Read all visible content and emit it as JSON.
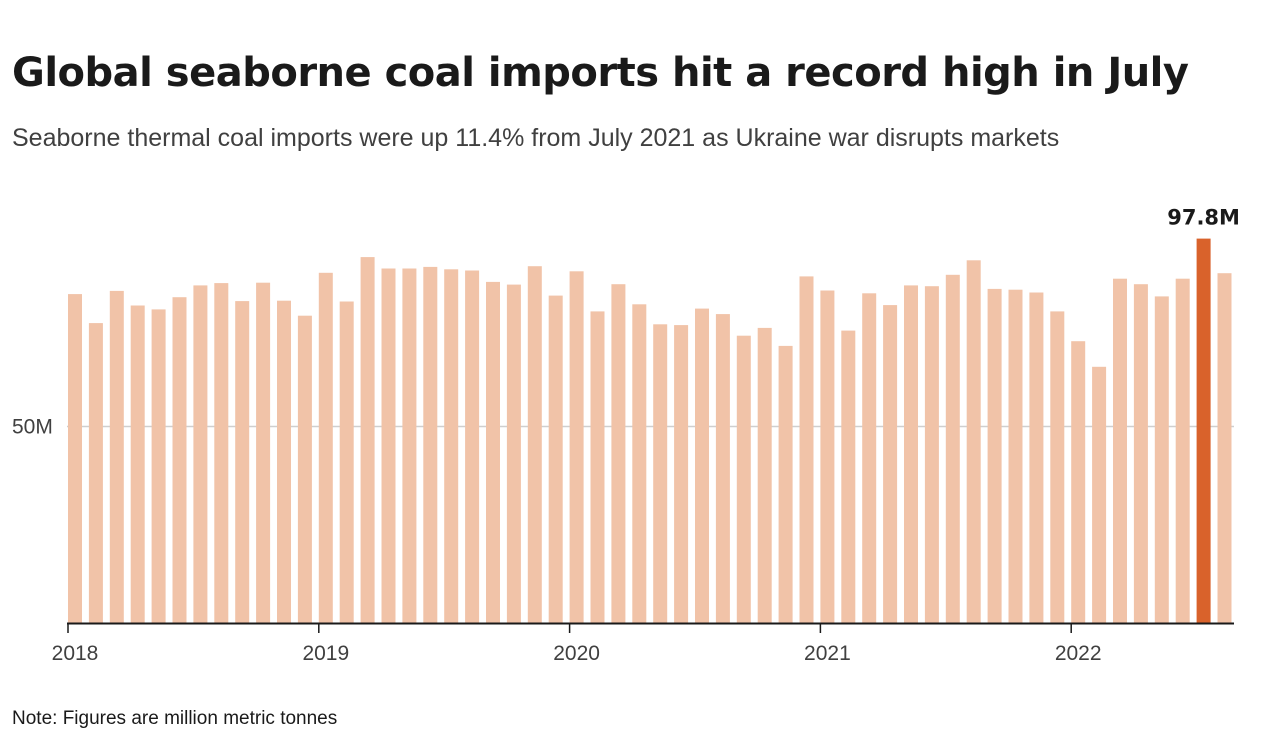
{
  "chart_data": {
    "type": "bar",
    "title": "Global seaborne coal imports hit a record high in July",
    "subtitle": "Seaborne thermal coal imports were up 11.4% from July 2021 as Ukraine war disrupts markets",
    "note": "Note: Figures are million metric tonnes",
    "xlabel": "",
    "ylabel": "",
    "ylim": [
      0,
      100
    ],
    "y_ticks": [
      {
        "value": 50,
        "label": "50M"
      }
    ],
    "x_ticks": [
      {
        "index": 0,
        "label": "2018"
      },
      {
        "index": 12,
        "label": "2019"
      },
      {
        "index": 24,
        "label": "2020"
      },
      {
        "index": 36,
        "label": "2021"
      },
      {
        "index": 48,
        "label": "2022"
      }
    ],
    "categories": [
      "2018-01",
      "2018-02",
      "2018-03",
      "2018-04",
      "2018-05",
      "2018-06",
      "2018-07",
      "2018-08",
      "2018-09",
      "2018-10",
      "2018-11",
      "2018-12",
      "2019-01",
      "2019-02",
      "2019-03",
      "2019-04",
      "2019-05",
      "2019-06",
      "2019-07",
      "2019-08",
      "2019-09",
      "2019-10",
      "2019-11",
      "2019-12",
      "2020-01",
      "2020-02",
      "2020-03",
      "2020-04",
      "2020-05",
      "2020-06",
      "2020-07",
      "2020-08",
      "2020-09",
      "2020-10",
      "2020-11",
      "2020-12",
      "2021-01",
      "2021-02",
      "2021-03",
      "2021-04",
      "2021-05",
      "2021-06",
      "2021-07",
      "2021-08",
      "2021-09",
      "2021-10",
      "2021-11",
      "2021-12",
      "2022-01",
      "2022-02",
      "2022-03",
      "2022-04",
      "2022-05",
      "2022-06",
      "2022-07",
      "2022-08"
    ],
    "values": [
      83.7,
      76.3,
      84.5,
      80.8,
      79.8,
      82.9,
      85.9,
      86.5,
      81.9,
      86.6,
      82.0,
      78.2,
      89.1,
      81.8,
      93.1,
      90.2,
      90.2,
      90.6,
      90.0,
      89.7,
      86.8,
      86.1,
      90.8,
      83.3,
      89.5,
      79.3,
      86.2,
      81.1,
      76.0,
      75.8,
      80.0,
      78.6,
      73.1,
      75.1,
      70.5,
      88.2,
      84.6,
      74.4,
      83.9,
      80.9,
      85.9,
      85.7,
      88.6,
      92.3,
      85.0,
      84.8,
      84.1,
      79.3,
      71.7,
      65.2,
      87.6,
      86.2,
      83.1,
      87.6,
      97.8,
      89.0
    ],
    "highlight_index": 54,
    "highlight_label": "97.8M",
    "colors": {
      "bar": "#f1c3a8",
      "highlight": "#d9622b",
      "grid": "#cfcfcf",
      "axis": "#1a1a1a"
    }
  }
}
